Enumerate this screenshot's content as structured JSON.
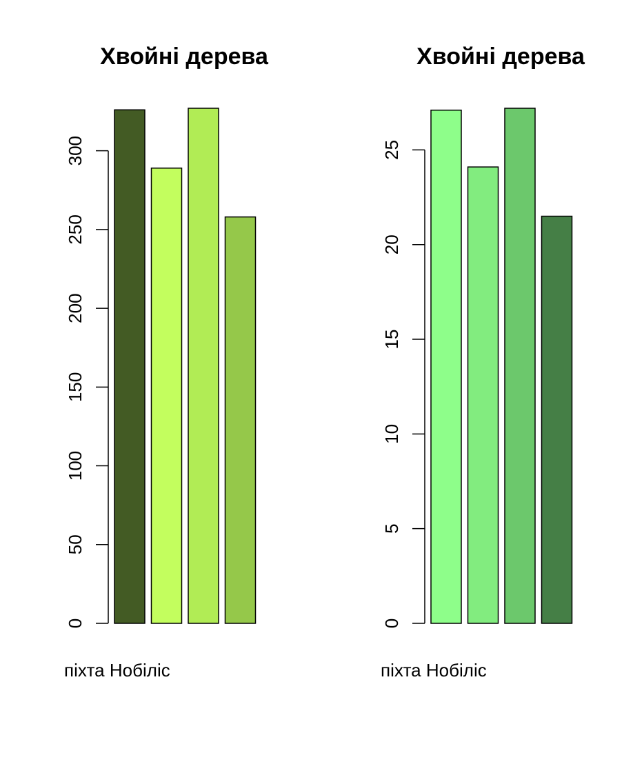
{
  "chart_data": [
    {
      "type": "bar",
      "title": "Хвойні дерева",
      "categories": [
        "піхта Нобіліс",
        "",
        "",
        ""
      ],
      "values": [
        326,
        289,
        327,
        258
      ],
      "colors": [
        "#435b24",
        "#c3fe5e",
        "#b1ec55",
        "#95c84a"
      ],
      "ylim": [
        0,
        327
      ],
      "yticks": [
        0,
        50,
        100,
        150,
        200,
        250,
        300
      ],
      "xlabel": "",
      "ylabel": "",
      "grid": false,
      "legend": "none"
    },
    {
      "type": "bar",
      "title": "Хвойні дерева",
      "categories": [
        "піхта Нобіліс",
        "",
        "",
        ""
      ],
      "values": [
        27.1,
        24.1,
        27.2,
        21.5
      ],
      "colors": [
        "#8efe8a",
        "#82ec7f",
        "#6cc86c",
        "#457f46"
      ],
      "ylim": [
        0,
        27.2
      ],
      "yticks": [
        0,
        5,
        10,
        15,
        20,
        25
      ],
      "xlabel": "",
      "ylabel": "",
      "grid": false,
      "legend": "none"
    }
  ]
}
